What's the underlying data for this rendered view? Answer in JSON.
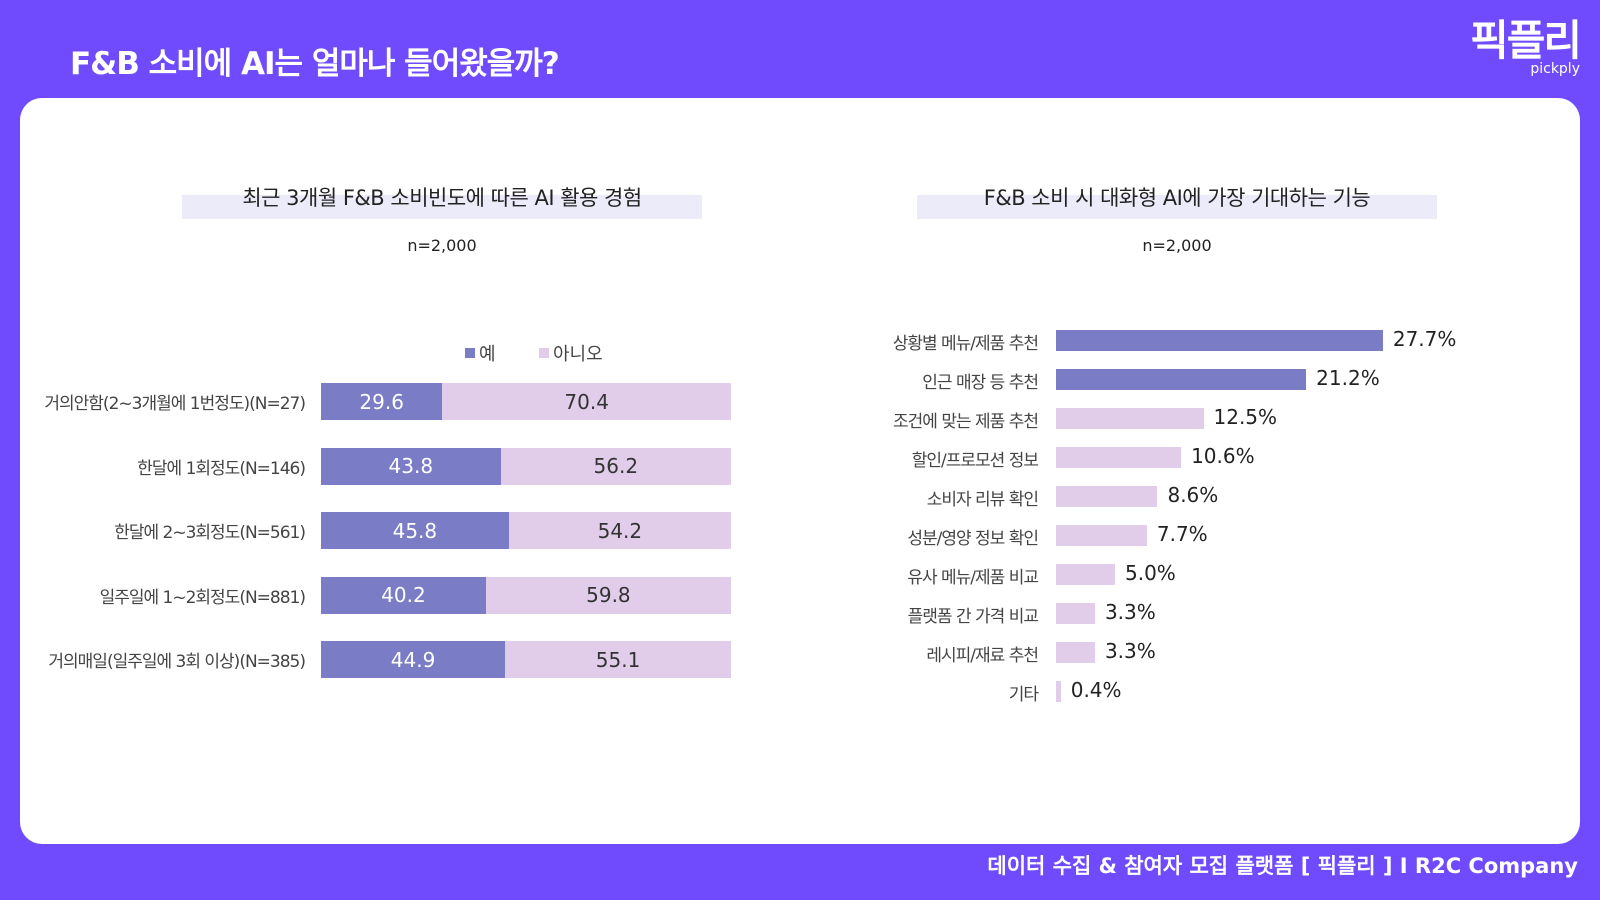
{
  "header": {
    "title": "F&B 소비에 AI는 얼마나 들어왔을까?",
    "logo_ko": "픽플리",
    "logo_en": "pickply"
  },
  "footer": "데이터 수집 & 참여자 모집 플랫폼 [ 픽플리 ]  I  R2C Company",
  "colors": {
    "background": "#6f4bfd",
    "dark_bar": "#7b7cc6",
    "light_bar": "#e1cdea"
  },
  "chart_data": [
    {
      "type": "bar",
      "stacked": true,
      "orientation": "horizontal",
      "title": "최근 3개월 F&B 소비빈도에 따른 AI 활용 경험",
      "subtitle": "n=2,000",
      "categories": [
        "거의안함(2~3개월에 1번정도)(N=27)",
        "한달에 1회정도(N=146)",
        "한달에 2~3회정도(N=561)",
        "일주일에 1~2회정도(N=881)",
        "거의매일(일주일에 3회 이상)(N=385)"
      ],
      "series": [
        {
          "name": "예",
          "values": [
            29.6,
            43.8,
            45.8,
            40.2,
            44.9
          ]
        },
        {
          "name": "아니오",
          "values": [
            70.4,
            56.2,
            54.2,
            59.8,
            55.1
          ]
        }
      ],
      "legend": "top",
      "xlim": [
        0,
        100
      ]
    },
    {
      "type": "bar",
      "orientation": "horizontal",
      "title": "F&B 소비 시 대화형 AI에 가장 기대하는 기능",
      "subtitle": "n=2,000",
      "categories": [
        "상황별 메뉴/제품 추천",
        "인근 매장 등 추천",
        "조건에 맞는 제품 추천",
        "할인/프로모션 정보",
        "소비자 리뷰 확인",
        "성분/영양 정보 확인",
        "유사 메뉴/제품 비교",
        "플랫폼 간 가격 비교",
        "레시피/재료 추천",
        "기타"
      ],
      "values": [
        27.7,
        21.2,
        12.5,
        10.6,
        8.6,
        7.7,
        5.0,
        3.3,
        3.3,
        0.4
      ],
      "labels": [
        "27.7%",
        "21.2%",
        "12.5%",
        "10.6%",
        "8.6%",
        "7.7%",
        "5.0%",
        "3.3%",
        "3.3%",
        "0.4%"
      ],
      "highlighted_top": 2
    }
  ]
}
